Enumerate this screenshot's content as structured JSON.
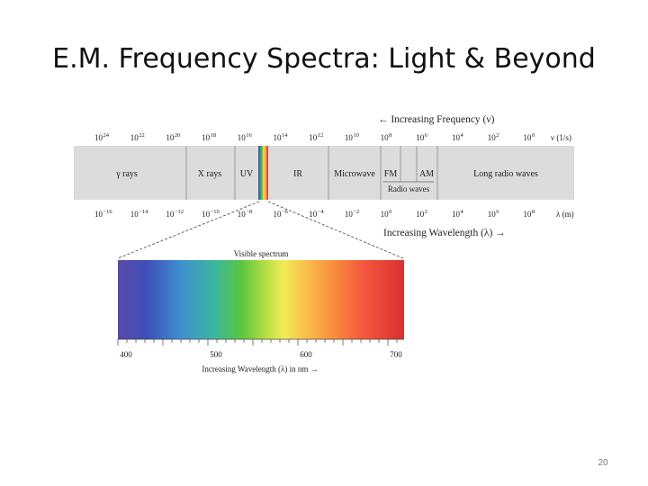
{
  "slide": {
    "title": "E.M. Frequency Spectra: Light & Beyond",
    "page_number": "20"
  },
  "diagram": {
    "frequency_axis": {
      "label": "← Increasing Frequency (ν)",
      "unit": "ν (1/s)",
      "ticks": [
        {
          "base": "10",
          "exp": "24"
        },
        {
          "base": "10",
          "exp": "22"
        },
        {
          "base": "10",
          "exp": "20"
        },
        {
          "base": "10",
          "exp": "18"
        },
        {
          "base": "10",
          "exp": "16"
        },
        {
          "base": "10",
          "exp": "14"
        },
        {
          "base": "10",
          "exp": "12"
        },
        {
          "base": "10",
          "exp": "10"
        },
        {
          "base": "10",
          "exp": "8"
        },
        {
          "base": "10",
          "exp": "6"
        },
        {
          "base": "10",
          "exp": "4"
        },
        {
          "base": "10",
          "exp": "2"
        },
        {
          "base": "10",
          "exp": "0"
        }
      ]
    },
    "wavelength_axis": {
      "label": "Increasing Wavelength (λ) →",
      "unit": "λ (m)",
      "ticks": [
        {
          "base": "10",
          "exp": "−16"
        },
        {
          "base": "10",
          "exp": "−14"
        },
        {
          "base": "10",
          "exp": "−12"
        },
        {
          "base": "10",
          "exp": "−10"
        },
        {
          "base": "10",
          "exp": "−8"
        },
        {
          "base": "10",
          "exp": "−6"
        },
        {
          "base": "10",
          "exp": "−4"
        },
        {
          "base": "10",
          "exp": "−2"
        },
        {
          "base": "10",
          "exp": "0"
        },
        {
          "base": "10",
          "exp": "2"
        },
        {
          "base": "10",
          "exp": "4"
        },
        {
          "base": "10",
          "exp": "6"
        },
        {
          "base": "10",
          "exp": "8"
        }
      ]
    },
    "regions": [
      {
        "label": "γ rays"
      },
      {
        "label": "X rays"
      },
      {
        "label": "UV"
      },
      {
        "label": "IR"
      },
      {
        "label": "Microwave"
      },
      {
        "label": "FM"
      },
      {
        "label": "AM"
      },
      {
        "label": "Long radio waves"
      }
    ],
    "radio_label": "Radio waves",
    "visible": {
      "title": "Visible spectrum",
      "axis_label": "Increasing Wavelength (λ) in nm →",
      "ticks": [
        "400",
        "500",
        "600",
        "700"
      ]
    },
    "colors": {
      "band": "#dcdcdc",
      "divider": "#9a9a9a",
      "text": "#222222"
    }
  }
}
